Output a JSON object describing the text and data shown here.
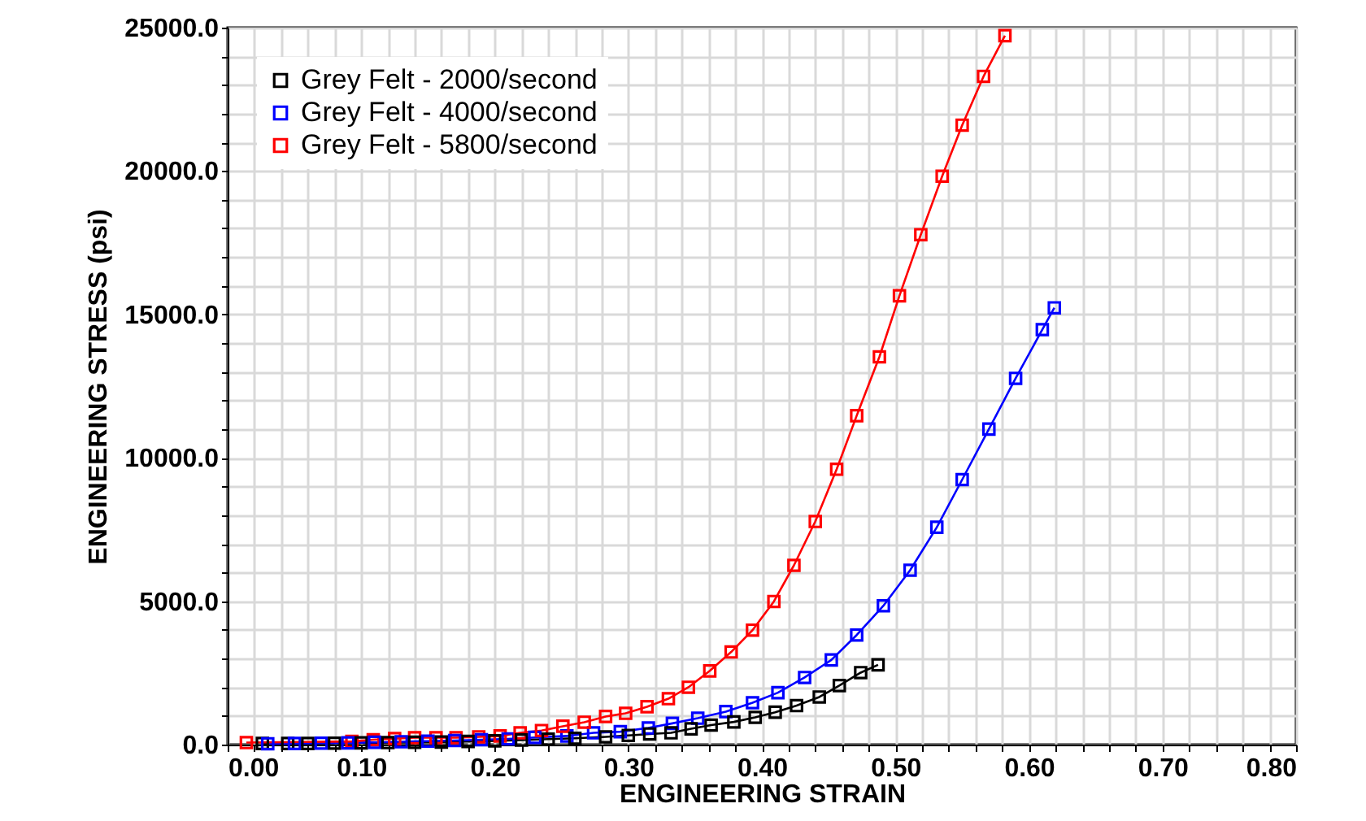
{
  "chart_data": {
    "type": "line",
    "xlabel": "ENGINEERING STRAIN",
    "ylabel": "ENGINEERING STRESS (psi)",
    "xlim": [
      0,
      0.8
    ],
    "ylim": [
      0,
      25000
    ],
    "xticks": [
      {
        "value": 0,
        "label": "0.00"
      },
      {
        "value": 0.02,
        "label": null
      },
      {
        "value": 0.04,
        "label": null
      },
      {
        "value": 0.06,
        "label": null
      },
      {
        "value": 0.08,
        "label": null
      },
      {
        "value": 0.1,
        "label": "0.10"
      },
      {
        "value": 0.12,
        "label": null
      },
      {
        "value": 0.14,
        "label": null
      },
      {
        "value": 0.16,
        "label": null
      },
      {
        "value": 0.18,
        "label": null
      },
      {
        "value": 0.2,
        "label": "0.20"
      },
      {
        "value": 0.22,
        "label": null
      },
      {
        "value": 0.24,
        "label": null
      },
      {
        "value": 0.26,
        "label": null
      },
      {
        "value": 0.28,
        "label": null
      },
      {
        "value": 0.3,
        "label": "0.30"
      },
      {
        "value": 0.32,
        "label": null
      },
      {
        "value": 0.34,
        "label": null
      },
      {
        "value": 0.36,
        "label": null
      },
      {
        "value": 0.38,
        "label": null
      },
      {
        "value": 0.4,
        "label": "0.40"
      },
      {
        "value": 0.42,
        "label": null
      },
      {
        "value": 0.44,
        "label": null
      },
      {
        "value": 0.46,
        "label": null
      },
      {
        "value": 0.48,
        "label": null
      },
      {
        "value": 0.5,
        "label": "0.50"
      },
      {
        "value": 0.52,
        "label": null
      },
      {
        "value": 0.54,
        "label": null
      },
      {
        "value": 0.56,
        "label": null
      },
      {
        "value": 0.58,
        "label": null
      },
      {
        "value": 0.6,
        "label": "0.60"
      },
      {
        "value": 0.62,
        "label": null
      },
      {
        "value": 0.64,
        "label": null
      },
      {
        "value": 0.66,
        "label": null
      },
      {
        "value": 0.68,
        "label": null
      },
      {
        "value": 0.7,
        "label": "0.70"
      },
      {
        "value": 0.72,
        "label": null
      },
      {
        "value": 0.74,
        "label": null
      },
      {
        "value": 0.76,
        "label": null
      },
      {
        "value": 0.78,
        "label": null
      },
      {
        "value": 0.8,
        "label": "0.80"
      }
    ],
    "yticks": [
      {
        "value": 0,
        "label": "0.0"
      },
      {
        "value": 1000,
        "label": null
      },
      {
        "value": 2000,
        "label": null
      },
      {
        "value": 3000,
        "label": null
      },
      {
        "value": 4000,
        "label": null
      },
      {
        "value": 5000,
        "label": "5000.0"
      },
      {
        "value": 6000,
        "label": null
      },
      {
        "value": 7000,
        "label": null
      },
      {
        "value": 8000,
        "label": null
      },
      {
        "value": 9000,
        "label": null
      },
      {
        "value": 10000,
        "label": "10000.0"
      },
      {
        "value": 11000,
        "label": null
      },
      {
        "value": 12000,
        "label": null
      },
      {
        "value": 13000,
        "label": null
      },
      {
        "value": 14000,
        "label": null
      },
      {
        "value": 15000,
        "label": "15000.0"
      },
      {
        "value": 16000,
        "label": null
      },
      {
        "value": 17000,
        "label": null
      },
      {
        "value": 18000,
        "label": null
      },
      {
        "value": 19000,
        "label": null
      },
      {
        "value": 20000,
        "label": "20000.0"
      },
      {
        "value": 21000,
        "label": null
      },
      {
        "value": 22000,
        "label": null
      },
      {
        "value": 23000,
        "label": null
      },
      {
        "value": 24000,
        "label": null
      },
      {
        "value": 25000,
        "label": "25000.0"
      }
    ],
    "grid": true,
    "legend": "top left",
    "marker": "square",
    "line_style": "solid",
    "series": [
      {
        "name": "Grey Felt - 2000/second",
        "color": "#000000",
        "x": [
          0.026,
          0.045,
          0.06,
          0.08,
          0.1,
          0.12,
          0.14,
          0.16,
          0.18,
          0.2,
          0.22,
          0.24,
          0.26,
          0.283,
          0.3,
          0.316,
          0.332,
          0.347,
          0.362,
          0.379,
          0.395,
          0.41,
          0.426,
          0.443,
          0.458,
          0.474,
          0.487
        ],
        "values": [
          40,
          40,
          40,
          50,
          60,
          70,
          80,
          90,
          110,
          130,
          160,
          190,
          220,
          270,
          320,
          370,
          410,
          550,
          680,
          790,
          950,
          1130,
          1360,
          1660,
          2060,
          2510,
          2780
        ]
      },
      {
        "name": "Grey Felt - 4000/second",
        "color": "#0000ff",
        "x": [
          0.03,
          0.05,
          0.07,
          0.09,
          0.11,
          0.13,
          0.15,
          0.17,
          0.19,
          0.21,
          0.23,
          0.254,
          0.274,
          0.294,
          0.315,
          0.333,
          0.352,
          0.373,
          0.393,
          0.412,
          0.432,
          0.452,
          0.471,
          0.491,
          0.511,
          0.531,
          0.55,
          0.57,
          0.59,
          0.61,
          0.619
        ],
        "values": [
          30,
          40,
          50,
          60,
          80,
          100,
          120,
          140,
          170,
          200,
          250,
          300,
          410,
          450,
          580,
          740,
          920,
          1150,
          1460,
          1810,
          2340,
          2950,
          3820,
          4840,
          6080,
          7580,
          9240,
          11000,
          12770,
          14470,
          15230
        ]
      },
      {
        "name": "Grey Felt - 5800/second",
        "color": "#ff0000",
        "x": [
          0.014,
          0.093,
          0.109,
          0.125,
          0.14,
          0.156,
          0.171,
          0.188,
          0.204,
          0.219,
          0.235,
          0.251,
          0.267,
          0.283,
          0.298,
          0.314,
          0.33,
          0.345,
          0.361,
          0.377,
          0.393,
          0.409,
          0.424,
          0.44,
          0.456,
          0.471,
          0.488,
          0.503,
          0.519,
          0.535,
          0.55,
          0.566,
          0.582
        ],
        "values": [
          70,
          110,
          170,
          210,
          240,
          240,
          240,
          270,
          300,
          410,
          490,
          640,
          780,
          980,
          1090,
          1320,
          1600,
          2000,
          2570,
          3230,
          3990,
          4990,
          6250,
          7780,
          9600,
          11470,
          13520,
          15650,
          17780,
          19820,
          21600,
          23300,
          24720
        ]
      }
    ]
  }
}
